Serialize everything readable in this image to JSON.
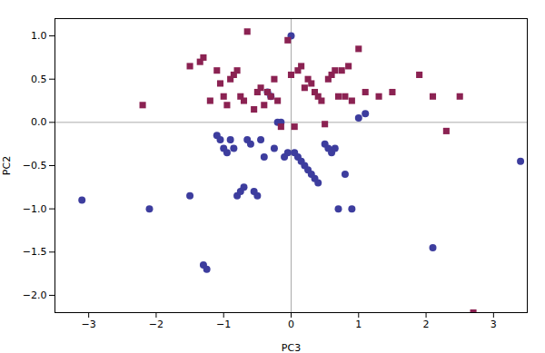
{
  "chart_data": {
    "type": "scatter",
    "xlabel": "PC3",
    "ylabel": "PC2",
    "background_color": "#ffffff",
    "grid": false,
    "xlim": [
      -3.5,
      3.5
    ],
    "ylim": [
      -2.2,
      1.2
    ],
    "xticks": [
      -3,
      -2,
      -1,
      0,
      1,
      2,
      3
    ],
    "yticks": [
      {
        "value": -2.0,
        "label": "−2.0"
      },
      -1.5,
      {
        "value": -1.0,
        "label": "−1.0"
      },
      -0.5,
      {
        "value": 0.0,
        "label": "0.0"
      },
      0.5,
      {
        "value": 1.0,
        "label": "1.0"
      }
    ],
    "annotations": [
      {
        "type": "hline",
        "y": 0,
        "color": "#aaaaaa"
      },
      {
        "type": "vline",
        "x": 0,
        "color": "#aaaaaa"
      }
    ],
    "series": [
      {
        "marker": "circle",
        "color": "#3d3d9e",
        "x": [
          -3.1,
          -2.1,
          -1.5,
          -1.3,
          -1.25,
          -1.1,
          -1.05,
          -1.0,
          -0.95,
          -0.9,
          -0.85,
          -0.8,
          -0.75,
          -0.7,
          -0.65,
          -0.6,
          -0.55,
          -0.5,
          -0.45,
          -0.4,
          -0.35,
          -0.3,
          -0.25,
          -0.2,
          -0.15,
          -0.1,
          -0.05,
          0.0,
          0.05,
          0.1,
          0.15,
          0.2,
          0.25,
          0.3,
          0.35,
          0.4,
          0.5,
          0.55,
          0.6,
          0.65,
          0.7,
          0.8,
          0.9,
          1.0,
          1.1,
          2.1,
          3.4
        ],
        "values": [
          -0.9,
          -1.0,
          -0.85,
          -1.65,
          -1.7,
          -0.15,
          -0.2,
          -0.3,
          -0.35,
          -0.2,
          -0.3,
          -0.85,
          -0.8,
          -0.75,
          -0.2,
          -0.25,
          -0.8,
          -0.85,
          -0.2,
          -0.4,
          0.35,
          0.3,
          -0.3,
          0.0,
          0.0,
          -0.4,
          -0.35,
          1.0,
          -0.35,
          -0.4,
          -0.45,
          -0.5,
          -0.55,
          -0.6,
          -0.65,
          -0.7,
          -0.25,
          -0.3,
          -0.35,
          -0.3,
          -1.0,
          -0.6,
          -1.0,
          0.05,
          0.1,
          -1.45,
          -0.45
        ]
      },
      {
        "marker": "square",
        "color": "#8b2252",
        "x": [
          -2.2,
          -1.5,
          -1.35,
          -1.3,
          -1.2,
          -1.1,
          -1.05,
          -1.0,
          -0.95,
          -0.9,
          -0.85,
          -0.8,
          -0.75,
          -0.7,
          -0.65,
          -0.55,
          -0.5,
          -0.45,
          -0.4,
          -0.35,
          -0.3,
          -0.25,
          -0.2,
          -0.15,
          -0.05,
          0.0,
          0.05,
          0.1,
          0.15,
          0.2,
          0.25,
          0.3,
          0.35,
          0.4,
          0.45,
          0.5,
          0.55,
          0.6,
          0.65,
          0.7,
          0.75,
          0.8,
          0.85,
          0.9,
          1.0,
          1.1,
          1.3,
          1.5,
          1.9,
          2.1,
          2.3,
          2.5,
          2.7
        ],
        "values": [
          0.2,
          0.65,
          0.7,
          0.75,
          0.25,
          0.6,
          0.45,
          0.3,
          0.2,
          0.5,
          0.55,
          0.6,
          0.3,
          0.25,
          1.05,
          0.15,
          0.35,
          0.4,
          0.2,
          0.35,
          0.3,
          0.5,
          0.25,
          -0.05,
          0.95,
          0.55,
          -0.05,
          0.6,
          0.65,
          0.4,
          0.5,
          0.45,
          0.35,
          0.3,
          0.25,
          -0.02,
          0.5,
          0.55,
          0.6,
          0.3,
          0.6,
          0.3,
          0.65,
          0.25,
          0.85,
          0.35,
          0.3,
          0.35,
          0.55,
          0.3,
          -0.1,
          0.3,
          -2.2
        ]
      }
    ]
  }
}
